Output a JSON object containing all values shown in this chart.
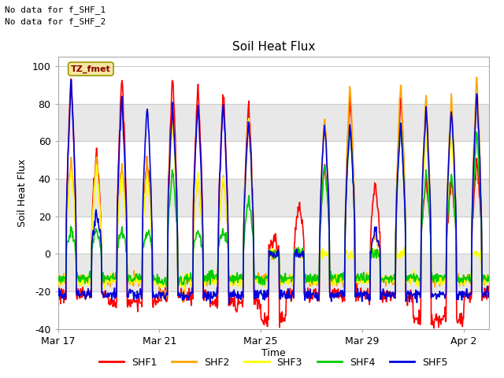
{
  "title": "Soil Heat Flux",
  "xlabel": "Time",
  "ylabel": "Soil Heat Flux",
  "ylim": [
    -40,
    105
  ],
  "yticks": [
    -40,
    -20,
    0,
    20,
    40,
    60,
    80,
    100
  ],
  "no_data_line1": "No data for f_SHF_1",
  "no_data_line2": "No data for f_SHF_2",
  "tz_label": "TZ_fmet",
  "series_colors": [
    "#ff0000",
    "#ffa500",
    "#ffff00",
    "#00cc00",
    "#0000dd"
  ],
  "series_names": [
    "SHF1",
    "SHF2",
    "SHF3",
    "SHF4",
    "SHF5"
  ],
  "fig_bg_color": "#ffffff",
  "plot_bg_color": "#ffffff",
  "band_colors": [
    "#ffffff",
    "#e8e8e8"
  ],
  "grid_color": "#cccccc",
  "x_tick_labels": [
    "Mar 17",
    "Mar 21",
    "Mar 25",
    "Mar 29",
    "Apr 2"
  ],
  "x_tick_positions": [
    0,
    4,
    8,
    12,
    16
  ],
  "n_days": 17
}
